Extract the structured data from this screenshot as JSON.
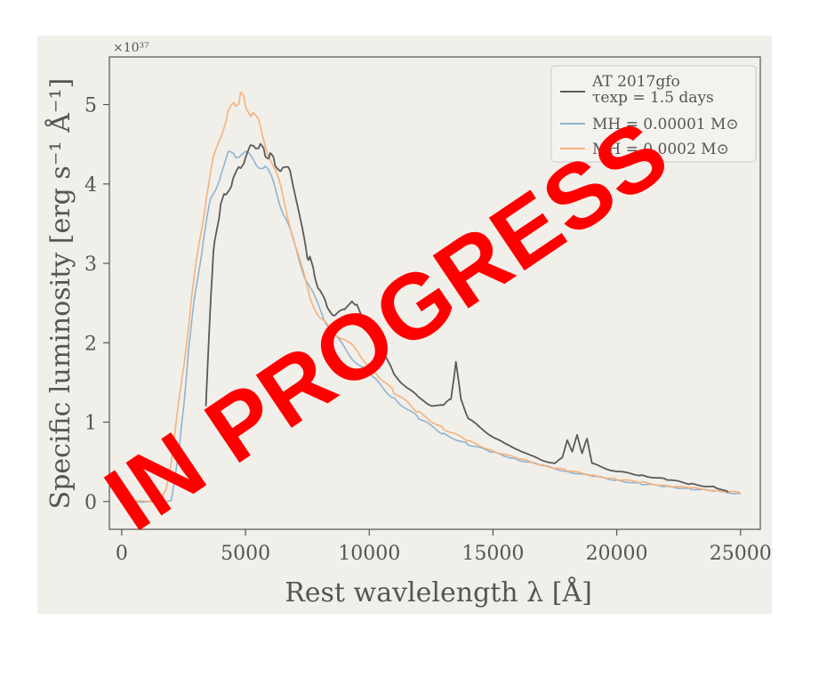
{
  "chart_data": {
    "type": "line",
    "title": "",
    "xlabel": "Rest wavlelength λ [Å]",
    "ylabel": "Specific luminosity [erg s⁻¹ Å⁻¹]",
    "y_exponent_label": "×10³⁷",
    "xlim": [
      -500,
      25800
    ],
    "ylim": [
      -0.35,
      5.6
    ],
    "xticks": [
      0,
      5000,
      10000,
      15000,
      20000,
      25000
    ],
    "xtick_labels": [
      "0",
      "5000",
      "10000",
      "15000",
      "20000",
      "25000"
    ],
    "yticks": [
      0,
      1,
      2,
      3,
      4,
      5
    ],
    "ytick_labels": [
      "0",
      "1",
      "2",
      "3",
      "4",
      "5"
    ],
    "grid": false,
    "legend_position": "top-right",
    "series": [
      {
        "name": "AT 2017gfo",
        "name_line2": "τexp = 1.5 days",
        "color": "#5a5a5a",
        "x": [
          3400,
          3500,
          3600,
          3700,
          3800,
          4000,
          4200,
          4500,
          4800,
          5000,
          5200,
          5400,
          5600,
          5800,
          6000,
          6200,
          6500,
          6800,
          7000,
          7300,
          7500,
          7600,
          7800,
          8000,
          8300,
          8600,
          9000,
          9300,
          9500,
          9800,
          10000,
          10300,
          10600,
          11000,
          11500,
          12000,
          12500,
          13000,
          13300,
          13500,
          13700,
          14000,
          14500,
          15000,
          15500,
          16000,
          16500,
          17000,
          17500,
          17800,
          18000,
          18200,
          18400,
          18600,
          18800,
          19000,
          19500,
          20000,
          21000,
          22000,
          23000,
          24000,
          24500
        ],
        "y": [
          1.2,
          1.9,
          2.6,
          3.1,
          3.4,
          3.7,
          3.9,
          4.05,
          4.2,
          4.35,
          4.45,
          4.5,
          4.45,
          4.4,
          4.35,
          4.25,
          4.2,
          4.15,
          3.9,
          3.4,
          3.1,
          3.05,
          2.85,
          2.65,
          2.45,
          2.35,
          2.4,
          2.55,
          2.45,
          2.25,
          2.15,
          2.0,
          1.85,
          1.6,
          1.45,
          1.3,
          1.22,
          1.2,
          1.3,
          1.75,
          1.3,
          1.05,
          0.92,
          0.82,
          0.72,
          0.66,
          0.58,
          0.52,
          0.48,
          0.55,
          0.78,
          0.62,
          0.85,
          0.6,
          0.8,
          0.48,
          0.42,
          0.38,
          0.33,
          0.28,
          0.22,
          0.18,
          0.12
        ]
      },
      {
        "name": "MH = 0.00001 M⊙",
        "color": "#8fb3d1",
        "x": [
          500,
          1000,
          1500,
          2000,
          2300,
          2500,
          2700,
          3000,
          3300,
          3600,
          4000,
          4300,
          4600,
          5000,
          5400,
          5800,
          6200,
          6600,
          7000,
          7400,
          7800,
          8200,
          8700,
          9200,
          10000,
          11000,
          12000,
          13000,
          14000,
          15000,
          16000,
          17000,
          18000,
          19000,
          20000,
          21000,
          22000,
          23000,
          24000,
          25000
        ],
        "y": [
          0,
          0,
          0,
          0.02,
          0.6,
          1.2,
          1.9,
          2.7,
          3.3,
          3.8,
          4.15,
          4.35,
          4.4,
          4.35,
          4.3,
          4.2,
          3.95,
          3.6,
          3.2,
          2.85,
          2.55,
          2.3,
          2.05,
          1.85,
          1.6,
          1.3,
          1.05,
          0.85,
          0.72,
          0.62,
          0.53,
          0.45,
          0.38,
          0.32,
          0.27,
          0.22,
          0.19,
          0.16,
          0.13,
          0.1
        ]
      },
      {
        "name": "MH = 0.0002 M⊙",
        "color": "#f4b27b",
        "x": [
          500,
          1000,
          1500,
          1800,
          2000,
          2200,
          2500,
          2800,
          3100,
          3400,
          3700,
          4000,
          4300,
          4600,
          4800,
          5000,
          5300,
          5600,
          6000,
          6400,
          6800,
          7200,
          7600,
          8000,
          8500,
          9000,
          10000,
          11000,
          12000,
          13000,
          14000,
          15000,
          16000,
          17000,
          18000,
          19000,
          20000,
          21000,
          22000,
          23000,
          24000,
          25000
        ],
        "y": [
          0,
          0,
          0,
          0.15,
          0.5,
          1.0,
          1.7,
          2.5,
          3.2,
          3.8,
          4.3,
          4.65,
          4.85,
          5.05,
          5.1,
          5.0,
          4.9,
          4.7,
          4.35,
          3.95,
          3.5,
          3.0,
          2.6,
          2.3,
          2.15,
          2.05,
          1.72,
          1.38,
          1.12,
          0.92,
          0.76,
          0.64,
          0.54,
          0.46,
          0.39,
          0.33,
          0.28,
          0.24,
          0.2,
          0.17,
          0.14,
          0.11
        ]
      }
    ]
  },
  "watermark": {
    "text": "IN PROGRESS",
    "color": "#ff0000"
  }
}
